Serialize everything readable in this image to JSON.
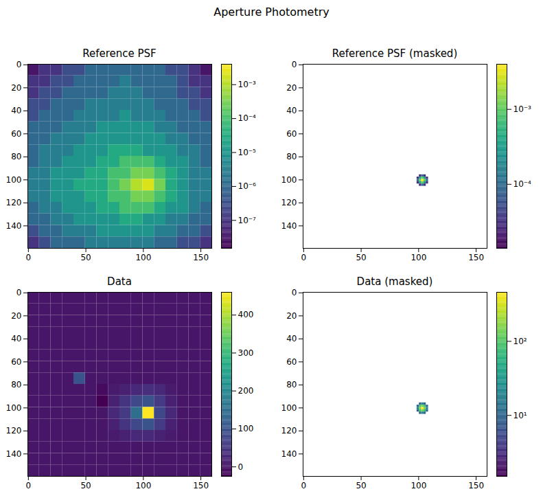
{
  "chart_data": [
    {
      "type": "heatmap",
      "title": "Reference PSF",
      "suptitle": "Aperture Photometry",
      "color": "viridis",
      "xlim": [
        -0.5,
        159.5
      ],
      "ylim": [
        159.5,
        -0.5
      ],
      "xticks": [
        0,
        50,
        100,
        150
      ],
      "yticks": [
        0,
        20,
        40,
        60,
        80,
        100,
        120,
        140
      ],
      "cell_origin": [
        -0.5,
        -0.5
      ],
      "cell_size": 10,
      "cells": [
        [
          3e-08,
          1e-07,
          1e-07,
          3e-07,
          3e-07,
          1e-06,
          1e-06,
          1e-06,
          1e-06,
          1e-06,
          1e-06,
          1e-06,
          3e-07,
          3e-07,
          1e-07,
          3e-08
        ],
        [
          1e-07,
          1e-07,
          3e-07,
          3e-07,
          1e-06,
          1e-06,
          1e-06,
          1e-06,
          3e-06,
          1e-06,
          1e-06,
          1e-06,
          1e-06,
          3e-07,
          1e-07,
          1e-07
        ],
        [
          1e-07,
          3e-07,
          3e-07,
          1e-06,
          1e-06,
          1e-06,
          1e-06,
          3e-06,
          3e-06,
          3e-06,
          1e-06,
          1e-06,
          1e-06,
          3e-07,
          3e-07,
          1e-07
        ],
        [
          3e-07,
          3e-07,
          1e-06,
          1e-06,
          1e-06,
          3e-06,
          3e-06,
          3e-06,
          3e-06,
          3e-06,
          3e-06,
          1e-06,
          1e-06,
          1e-06,
          3e-07,
          3e-07
        ],
        [
          3e-07,
          1e-06,
          1e-06,
          1e-06,
          3e-06,
          3e-06,
          3e-06,
          3e-06,
          1e-05,
          3e-06,
          3e-06,
          3e-06,
          1e-06,
          1e-06,
          1e-06,
          3e-07
        ],
        [
          1e-06,
          1e-06,
          1e-06,
          3e-06,
          3e-06,
          3e-06,
          1e-05,
          1e-05,
          1e-05,
          1e-05,
          1e-05,
          3e-06,
          3e-06,
          1e-06,
          1e-06,
          1e-06
        ],
        [
          1e-06,
          1e-06,
          3e-06,
          3e-06,
          3e-06,
          1e-05,
          1e-05,
          1e-05,
          1e-05,
          1e-05,
          1e-05,
          1e-05,
          3e-06,
          3e-06,
          1e-06,
          1e-06
        ],
        [
          1e-06,
          3e-06,
          3e-06,
          3e-06,
          1e-05,
          1e-05,
          1e-05,
          3e-05,
          3e-05,
          3e-05,
          1e-05,
          1e-05,
          1e-05,
          3e-06,
          3e-06,
          1e-06
        ],
        [
          1e-06,
          3e-06,
          3e-06,
          1e-05,
          1e-05,
          1e-05,
          3e-05,
          3e-05,
          0.0001,
          0.0001,
          0.0001,
          3e-05,
          1e-05,
          1e-05,
          3e-06,
          1e-06
        ],
        [
          3e-06,
          3e-06,
          1e-05,
          1e-05,
          1e-05,
          3e-05,
          3e-05,
          0.0001,
          0.0001,
          0.0003,
          0.0003,
          0.0001,
          3e-05,
          1e-05,
          3e-06,
          3e-06
        ],
        [
          3e-06,
          3e-06,
          1e-05,
          1e-05,
          3e-05,
          3e-05,
          3e-05,
          0.0001,
          0.0003,
          0.001,
          0.002,
          0.0003,
          3e-05,
          1e-05,
          3e-06,
          3e-06
        ],
        [
          3e-06,
          3e-06,
          1e-05,
          1e-05,
          1e-05,
          3e-05,
          3e-05,
          0.0001,
          0.0001,
          0.0003,
          0.0003,
          0.0001,
          3e-05,
          1e-05,
          3e-06,
          3e-06
        ],
        [
          1e-06,
          3e-06,
          3e-06,
          1e-05,
          1e-05,
          1e-05,
          3e-05,
          3e-05,
          0.0001,
          0.0001,
          0.0001,
          3e-05,
          1e-05,
          1e-05,
          3e-06,
          1e-06
        ],
        [
          1e-06,
          1e-06,
          3e-06,
          3e-06,
          1e-05,
          1e-05,
          1e-05,
          1e-05,
          3e-05,
          3e-05,
          1e-05,
          1e-05,
          3e-06,
          3e-06,
          1e-06,
          1e-06
        ],
        [
          3e-07,
          1e-06,
          1e-06,
          3e-06,
          3e-06,
          3e-06,
          1e-05,
          1e-05,
          1e-05,
          1e-05,
          1e-05,
          3e-06,
          3e-06,
          1e-06,
          1e-06,
          3e-07
        ],
        [
          1e-07,
          3e-07,
          1e-06,
          1e-06,
          1e-06,
          3e-06,
          3e-06,
          3e-06,
          3e-06,
          3e-06,
          3e-06,
          1e-06,
          1e-06,
          3e-07,
          3e-07,
          1e-07
        ]
      ],
      "colorbar": {
        "log": true,
        "lim": [
          1.5e-08,
          0.004
        ],
        "ticks": [
          {
            "value": 1e-07,
            "label": "10⁻⁷"
          },
          {
            "value": 1e-06,
            "label": "10⁻⁶"
          },
          {
            "value": 1e-05,
            "label": "10⁻⁵"
          },
          {
            "value": 0.0001,
            "label": "10⁻⁴"
          },
          {
            "value": 0.001,
            "label": "10⁻³"
          }
        ]
      }
    },
    {
      "type": "heatmap",
      "title": "Reference PSF (masked)",
      "color": "viridis",
      "xlim": [
        -0.5,
        159.5
      ],
      "ylim": [
        159.5,
        -0.5
      ],
      "xticks": [
        0,
        50,
        100,
        150
      ],
      "yticks": [
        0,
        20,
        40,
        60,
        80,
        100,
        120,
        140
      ],
      "cell_origin": [
        98.5,
        95.5
      ],
      "cell_size": 2,
      "cells": [
        [
          null,
          3e-05,
          0.0001,
          3e-05,
          null
        ],
        [
          3e-05,
          0.0003,
          0.001,
          0.0003,
          3e-05
        ],
        [
          0.0001,
          0.001,
          0.004,
          0.001,
          0.0001
        ],
        [
          3e-05,
          0.0003,
          0.001,
          0.0003,
          3e-05
        ],
        [
          null,
          3e-05,
          0.0001,
          3e-05,
          null
        ]
      ],
      "colorbar": {
        "log": true,
        "lim": [
          1.4e-05,
          0.004
        ],
        "ticks": [
          {
            "value": 0.0001,
            "label": "10⁻⁴"
          },
          {
            "value": 0.001,
            "label": "10⁻³"
          }
        ]
      }
    },
    {
      "type": "heatmap",
      "title": "Data",
      "color": "viridis",
      "xlim": [
        -0.5,
        159.5
      ],
      "ylim": [
        159.5,
        -0.5
      ],
      "xticks": [
        0,
        50,
        100,
        150
      ],
      "yticks": [
        0,
        20,
        40,
        60,
        80,
        100,
        120,
        140
      ],
      "cell_origin": [
        -0.5,
        -0.5
      ],
      "cell_size": 10,
      "cells": [
        [
          3,
          3,
          3,
          3,
          3,
          3,
          3,
          3,
          3,
          3,
          3,
          3,
          3,
          3,
          3,
          3
        ],
        [
          3,
          3,
          3,
          3,
          3,
          3,
          3,
          3,
          3,
          3,
          3,
          3,
          3,
          3,
          3,
          3
        ],
        [
          3,
          3,
          3,
          3,
          3,
          3,
          3,
          3,
          3,
          3,
          3,
          3,
          3,
          3,
          3,
          3
        ],
        [
          3,
          3,
          3,
          3,
          3,
          3,
          3,
          3,
          3,
          3,
          3,
          3,
          3,
          3,
          3,
          3
        ],
        [
          3,
          3,
          3,
          3,
          3,
          3,
          3,
          3,
          3,
          3,
          3,
          3,
          3,
          3,
          3,
          3
        ],
        [
          3,
          3,
          3,
          3,
          3,
          3,
          3,
          3,
          3,
          3,
          3,
          3,
          3,
          3,
          3,
          3
        ],
        [
          3,
          3,
          3,
          3,
          3,
          3,
          3,
          3,
          3,
          3,
          3,
          3,
          3,
          3,
          3,
          3
        ],
        [
          3,
          3,
          3,
          3,
          100,
          3,
          3,
          3,
          3,
          3,
          3,
          3,
          3,
          3,
          3,
          3
        ],
        [
          3,
          3,
          3,
          3,
          3,
          3,
          -10,
          10,
          20,
          30,
          40,
          30,
          10,
          3,
          3,
          3
        ],
        [
          3,
          3,
          3,
          3,
          3,
          3,
          -25,
          20,
          50,
          80,
          100,
          60,
          20,
          3,
          3,
          3
        ],
        [
          3,
          3,
          3,
          3,
          3,
          3,
          3,
          30,
          60,
          150,
          460,
          80,
          30,
          3,
          3,
          3
        ],
        [
          3,
          3,
          3,
          3,
          3,
          3,
          3,
          20,
          50,
          80,
          100,
          60,
          20,
          3,
          3,
          3
        ],
        [
          3,
          3,
          3,
          3,
          3,
          3,
          3,
          10,
          20,
          30,
          30,
          20,
          10,
          3,
          3,
          3
        ],
        [
          3,
          3,
          3,
          3,
          3,
          3,
          3,
          3,
          3,
          3,
          3,
          3,
          3,
          3,
          3,
          3
        ],
        [
          3,
          3,
          3,
          3,
          3,
          3,
          3,
          3,
          3,
          3,
          3,
          3,
          3,
          3,
          3,
          3
        ],
        [
          3,
          3,
          3,
          3,
          3,
          3,
          3,
          3,
          3,
          3,
          3,
          3,
          3,
          3,
          3,
          3
        ]
      ],
      "colorbar": {
        "log": false,
        "lim": [
          -25,
          460
        ],
        "ticks": [
          0,
          100,
          200,
          300,
          400
        ]
      }
    },
    {
      "type": "heatmap",
      "title": "Data (masked)",
      "color": "viridis",
      "xlim": [
        -0.5,
        159.5
      ],
      "ylim": [
        159.5,
        -0.5
      ],
      "xticks": [
        0,
        50,
        100,
        150
      ],
      "yticks": [
        0,
        20,
        40,
        60,
        80,
        100,
        120,
        140
      ],
      "cell_origin": [
        98.5,
        95.5
      ],
      "cell_size": 2,
      "cells": [
        [
          null,
          10,
          20,
          10,
          null
        ],
        [
          10,
          80,
          150,
          80,
          10
        ],
        [
          20,
          150,
          460,
          150,
          20
        ],
        [
          10,
          80,
          150,
          80,
          10
        ],
        [
          null,
          10,
          20,
          10,
          null
        ]
      ],
      "colorbar": {
        "log": true,
        "lim": [
          1.5,
          460
        ],
        "ticks": [
          {
            "value": 10,
            "label": "10¹"
          },
          {
            "value": 100,
            "label": "10²"
          }
        ]
      }
    }
  ]
}
